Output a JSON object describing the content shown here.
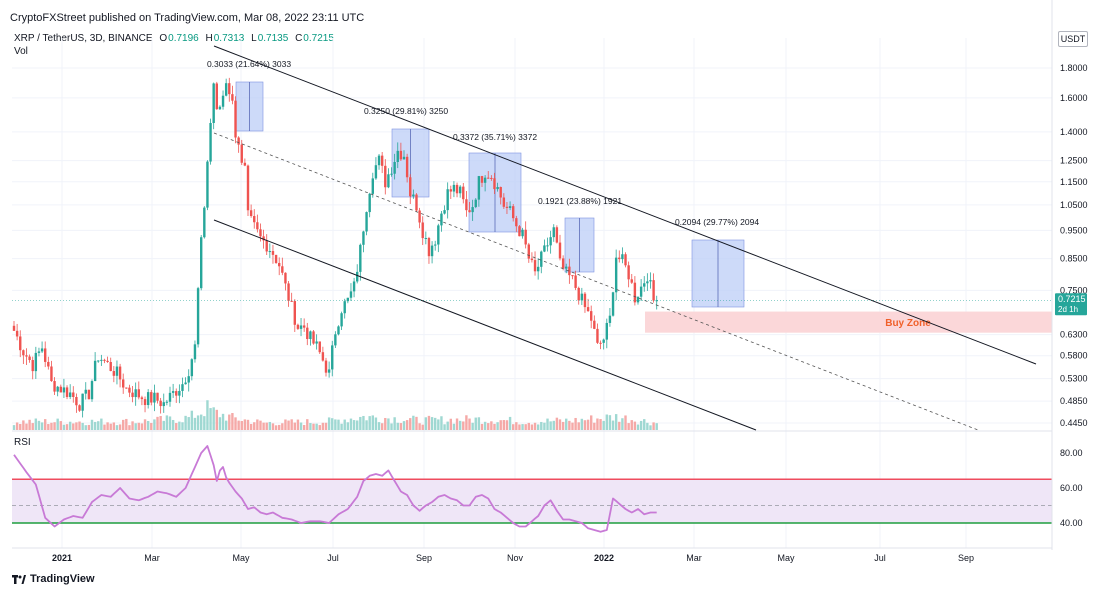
{
  "header": {
    "publisher_line": "CryptoFXStreet published on TradingView.com, Mar 08, 2022 23:11 UTC"
  },
  "legend": {
    "symbol": "XRP / TetherUS, 3D, BINANCE",
    "open_label": "O",
    "open_value": "0.7196",
    "high_label": "H",
    "high_value": "0.7313",
    "low_label": "L",
    "low_value": "0.7135",
    "close_label": "C",
    "close_value": "0.7215",
    "volume_label": "Vol"
  },
  "currency": "USDT",
  "price_tag": "0.7215",
  "price_tag_sub": "2d 1h",
  "buy_zone_label": "Buy Zone",
  "rsi_label": "RSI",
  "footer": {
    "brand": "TradingView"
  },
  "colors": {
    "up": "#26a69a",
    "down": "#ef5350",
    "measure_fill": "#bccdf7",
    "buy_zone_fill": "#fbd7d9",
    "buy_zone_text": "#f0602a",
    "rsi_line": "#c87ad6",
    "rsi_band": "#efe6f7",
    "rsi_upper": "#ef4b5e",
    "rsi_lower": "#1e9e3e",
    "price_tag_bg": "#26a69a"
  },
  "chart_data": {
    "type": "candlestick",
    "price_axis_ticks": [
      "1.8000",
      "1.6000",
      "1.4000",
      "1.2500",
      "1.1500",
      "1.0500",
      "0.9500",
      "0.8500",
      "0.7500",
      "0.6300",
      "0.5800",
      "0.5300",
      "0.4850",
      "0.4450"
    ],
    "rsi_axis_ticks": [
      "80.00",
      "60.00",
      "40.00"
    ],
    "time_axis_ticks": [
      "2021",
      "Mar",
      "May",
      "Jul",
      "Sep",
      "Nov",
      "2022",
      "Mar",
      "May",
      "Jul",
      "Sep"
    ],
    "rsi_levels": {
      "upper": 65,
      "middle": 50,
      "lower": 40
    },
    "buy_zone": {
      "low": 0.635,
      "high": 0.69
    },
    "measurements": [
      {
        "label": "0.3033 (21.64%) 3033"
      },
      {
        "label": "0.3250 (29.81%) 3250"
      },
      {
        "label": "0.3372 (35.71%) 3372"
      },
      {
        "label": "0.1921 (23.88%) 1921"
      },
      {
        "label": "0.2094 (29.77%) 2094"
      }
    ],
    "close_anchors": [
      [
        0,
        0.64
      ],
      [
        3,
        0.59
      ],
      [
        6,
        0.56
      ],
      [
        9,
        0.6
      ],
      [
        12,
        0.52
      ],
      [
        15,
        0.51
      ],
      [
        18,
        0.5
      ],
      [
        21,
        0.48
      ],
      [
        24,
        0.5
      ],
      [
        27,
        0.58
      ],
      [
        30,
        0.56
      ],
      [
        33,
        0.54
      ],
      [
        36,
        0.51
      ],
      [
        39,
        0.5
      ],
      [
        42,
        0.49
      ],
      [
        45,
        0.49
      ],
      [
        48,
        0.48
      ],
      [
        51,
        0.5
      ],
      [
        54,
        0.52
      ],
      [
        56,
        0.55
      ],
      [
        58,
        0.6
      ],
      [
        60,
        0.9
      ],
      [
        61,
        1.05
      ],
      [
        62,
        1.25
      ],
      [
        63,
        1.45
      ],
      [
        64,
        1.7
      ],
      [
        65,
        1.5
      ],
      [
        66,
        1.55
      ],
      [
        67,
        1.62
      ],
      [
        68,
        1.72
      ],
      [
        69,
        1.65
      ],
      [
        70,
        1.56
      ],
      [
        71,
        1.4
      ],
      [
        72,
        1.35
      ],
      [
        73,
        1.22
      ],
      [
        74,
        1.2
      ],
      [
        75,
        1.0
      ],
      [
        77,
        0.96
      ],
      [
        79,
        0.92
      ],
      [
        81,
        0.9
      ],
      [
        83,
        0.87
      ],
      [
        85,
        0.83
      ],
      [
        87,
        0.76
      ],
      [
        89,
        0.7
      ],
      [
        91,
        0.65
      ],
      [
        93,
        0.65
      ],
      [
        95,
        0.62
      ],
      [
        97,
        0.6
      ],
      [
        99,
        0.57
      ],
      [
        101,
        0.54
      ],
      [
        103,
        0.64
      ],
      [
        105,
        0.7
      ],
      [
        107,
        0.72
      ],
      [
        109,
        0.76
      ],
      [
        111,
        0.88
      ],
      [
        113,
        1.05
      ],
      [
        115,
        1.2
      ],
      [
        117,
        1.25
      ],
      [
        119,
        1.15
      ],
      [
        121,
        1.22
      ],
      [
        123,
        1.3
      ],
      [
        125,
        1.28
      ],
      [
        127,
        1.1
      ],
      [
        129,
        1.05
      ],
      [
        131,
        0.95
      ],
      [
        133,
        0.88
      ],
      [
        135,
        0.92
      ],
      [
        137,
        1.02
      ],
      [
        139,
        1.1
      ],
      [
        141,
        1.12
      ],
      [
        143,
        1.1
      ],
      [
        145,
        1.02
      ],
      [
        147,
        1.05
      ],
      [
        149,
        1.15
      ],
      [
        151,
        1.2
      ],
      [
        153,
        1.18
      ],
      [
        155,
        1.12
      ],
      [
        157,
        1.05
      ],
      [
        159,
        1.02
      ],
      [
        161,
        0.97
      ],
      [
        163,
        0.93
      ],
      [
        165,
        0.85
      ],
      [
        167,
        0.8
      ],
      [
        169,
        0.85
      ],
      [
        171,
        0.9
      ],
      [
        173,
        0.95
      ],
      [
        175,
        0.83
      ],
      [
        177,
        0.8
      ],
      [
        179,
        0.78
      ],
      [
        181,
        0.74
      ],
      [
        183,
        0.7
      ],
      [
        185,
        0.67
      ],
      [
        187,
        0.6
      ],
      [
        189,
        0.62
      ],
      [
        191,
        0.67
      ],
      [
        193,
        0.86
      ],
      [
        195,
        0.84
      ],
      [
        197,
        0.8
      ],
      [
        199,
        0.73
      ],
      [
        201,
        0.76
      ],
      [
        203,
        0.8
      ],
      [
        205,
        0.72
      ],
      [
        206,
        0.7215
      ]
    ],
    "volume_anchors": [
      [
        0,
        0.35
      ],
      [
        40,
        0.35
      ],
      [
        56,
        0.5
      ],
      [
        62,
        0.9
      ],
      [
        64,
        0.75
      ],
      [
        70,
        0.5
      ],
      [
        80,
        0.3
      ],
      [
        100,
        0.35
      ],
      [
        112,
        0.55
      ],
      [
        120,
        0.5
      ],
      [
        130,
        0.4
      ],
      [
        150,
        0.45
      ],
      [
        165,
        0.35
      ],
      [
        180,
        0.4
      ],
      [
        193,
        0.55
      ],
      [
        206,
        0.3
      ]
    ],
    "rsi_anchors": [
      [
        0,
        79
      ],
      [
        4,
        69
      ],
      [
        7,
        62
      ],
      [
        10,
        43
      ],
      [
        13,
        38
      ],
      [
        16,
        42
      ],
      [
        19,
        44
      ],
      [
        22,
        43
      ],
      [
        25,
        52
      ],
      [
        28,
        56
      ],
      [
        31,
        55
      ],
      [
        34,
        60
      ],
      [
        37,
        54
      ],
      [
        40,
        53
      ],
      [
        43,
        55
      ],
      [
        46,
        58
      ],
      [
        49,
        57
      ],
      [
        52,
        55
      ],
      [
        55,
        60
      ],
      [
        58,
        72
      ],
      [
        60,
        80
      ],
      [
        62,
        84
      ],
      [
        64,
        73
      ],
      [
        65,
        64
      ],
      [
        66,
        70
      ],
      [
        67,
        72
      ],
      [
        68,
        66
      ],
      [
        69,
        63
      ],
      [
        71,
        58
      ],
      [
        73,
        54
      ],
      [
        75,
        48
      ],
      [
        77,
        49
      ],
      [
        79,
        46
      ],
      [
        81,
        45
      ],
      [
        83,
        46
      ],
      [
        86,
        43
      ],
      [
        89,
        42
      ],
      [
        92,
        40
      ],
      [
        95,
        41
      ],
      [
        98,
        41
      ],
      [
        101,
        40
      ],
      [
        104,
        45
      ],
      [
        107,
        48
      ],
      [
        110,
        55
      ],
      [
        112,
        64
      ],
      [
        114,
        67
      ],
      [
        116,
        68
      ],
      [
        118,
        67
      ],
      [
        120,
        70
      ],
      [
        122,
        64
      ],
      [
        124,
        58
      ],
      [
        126,
        56
      ],
      [
        128,
        50
      ],
      [
        130,
        47
      ],
      [
        132,
        50
      ],
      [
        134,
        52
      ],
      [
        136,
        55
      ],
      [
        138,
        56
      ],
      [
        140,
        54
      ],
      [
        142,
        53
      ],
      [
        144,
        50
      ],
      [
        146,
        50
      ],
      [
        148,
        55
      ],
      [
        150,
        56
      ],
      [
        152,
        54
      ],
      [
        154,
        48
      ],
      [
        156,
        46
      ],
      [
        158,
        43
      ],
      [
        160,
        40
      ],
      [
        162,
        38
      ],
      [
        164,
        38
      ],
      [
        166,
        41
      ],
      [
        168,
        44
      ],
      [
        170,
        50
      ],
      [
        172,
        53
      ],
      [
        174,
        47
      ],
      [
        176,
        42
      ],
      [
        178,
        42
      ],
      [
        180,
        41
      ],
      [
        182,
        40
      ],
      [
        184,
        37
      ],
      [
        186,
        36
      ],
      [
        188,
        35
      ],
      [
        190,
        36
      ],
      [
        192,
        54
      ],
      [
        194,
        51
      ],
      [
        196,
        48
      ],
      [
        198,
        46
      ],
      [
        200,
        48
      ],
      [
        202,
        45
      ],
      [
        204,
        46
      ],
      [
        206,
        46
      ]
    ]
  }
}
